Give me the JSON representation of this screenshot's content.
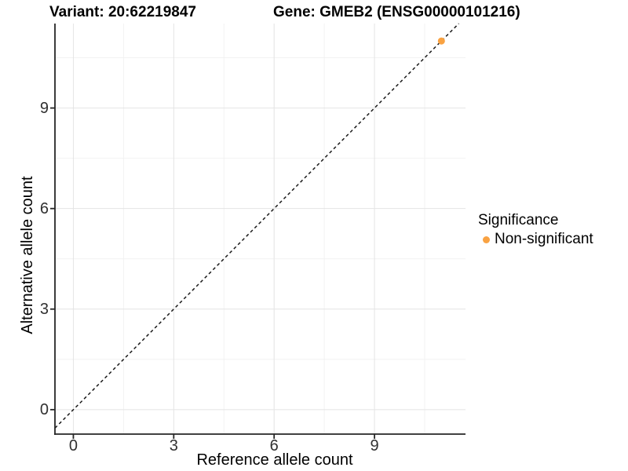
{
  "chart_data": {
    "type": "scatter",
    "titles": {
      "left": "Variant: 20:62219847",
      "right": "Gene: GMEB2 (ENSG00000101216)"
    },
    "xlabel": "Reference allele count",
    "ylabel": "Alternative allele count",
    "x_major_ticks": [
      0,
      3,
      6,
      9
    ],
    "y_major_ticks": [
      0,
      3,
      6,
      9
    ],
    "x_minor_ticks": [
      1.5,
      4.5,
      7.5,
      10.5
    ],
    "y_minor_ticks": [
      1.5,
      4.5,
      7.5,
      10.5
    ],
    "xlim": [
      -0.55,
      11.72
    ],
    "ylim": [
      -0.73,
      11.52
    ],
    "grid": {
      "enabled": true,
      "major_color": "#E4E4E4",
      "minor_color": "#F2F2F2"
    },
    "identity_line": {
      "equation": "y = x",
      "style": "dashed",
      "color": "#1a1a1a"
    },
    "series": [
      {
        "name": "Non-significant",
        "color": "#F9A242",
        "points": [
          {
            "x": 11,
            "y": 11
          }
        ]
      }
    ],
    "legend": {
      "title": "Significance",
      "position": "right",
      "items": [
        {
          "label": "Non-significant",
          "color": "#F9A242"
        }
      ]
    }
  },
  "colors": {
    "background": "#FFFFFF",
    "axis_line": "#262626",
    "tick_label": "#303030"
  }
}
